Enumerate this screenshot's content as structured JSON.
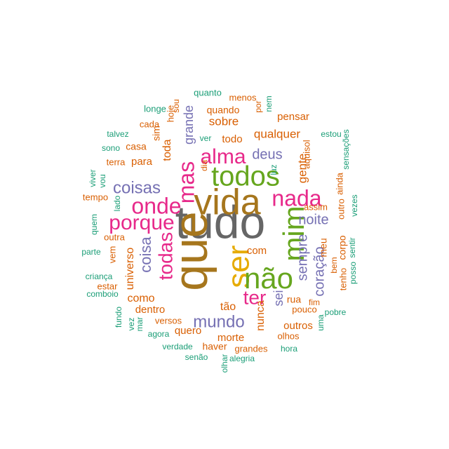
{
  "palette": {
    "teal": "#1b9e77",
    "orange": "#d95f02",
    "purple": "#7570b3",
    "magenta": "#e7298a",
    "green": "#66a61e",
    "gold": "#e6ab02",
    "brown": "#a6761d",
    "gray": "#666666"
  },
  "words": [
    {
      "text": "tudo",
      "color": "gray"
    },
    {
      "text": "que",
      "color": "brown"
    },
    {
      "text": "vida",
      "color": "brown"
    },
    {
      "text": "ser",
      "color": "gold"
    },
    {
      "text": "não",
      "color": "green"
    },
    {
      "text": "todos",
      "color": "green"
    },
    {
      "text": "mim",
      "color": "green"
    },
    {
      "text": "nada",
      "color": "magenta"
    },
    {
      "text": "alma",
      "color": "magenta"
    },
    {
      "text": "mas",
      "color": "magenta"
    },
    {
      "text": "onde",
      "color": "magenta"
    },
    {
      "text": "porque",
      "color": "magenta"
    },
    {
      "text": "coisas",
      "color": "purple"
    },
    {
      "text": "ter",
      "color": "magenta"
    },
    {
      "text": "todas",
      "color": "magenta"
    },
    {
      "text": "coisa",
      "color": "purple"
    },
    {
      "text": "mundo",
      "color": "purple"
    },
    {
      "text": "sempre",
      "color": "purple"
    },
    {
      "text": "noite",
      "color": "purple"
    },
    {
      "text": "deus",
      "color": "purple"
    },
    {
      "text": "coração",
      "color": "purple"
    },
    {
      "text": "quanto",
      "color": "teal"
    },
    {
      "text": "menos",
      "color": "orange"
    },
    {
      "text": "longe",
      "color": "teal"
    },
    {
      "text": "hoje",
      "color": "orange"
    },
    {
      "text": "sou",
      "color": "orange"
    },
    {
      "text": "quando",
      "color": "orange"
    },
    {
      "text": "por",
      "color": "orange"
    },
    {
      "text": "nem",
      "color": "teal"
    },
    {
      "text": "pensar",
      "color": "orange"
    },
    {
      "text": "cada",
      "color": "orange"
    },
    {
      "text": "sobre",
      "color": "orange"
    },
    {
      "text": "qualquer",
      "color": "orange"
    },
    {
      "text": "talvez",
      "color": "teal"
    },
    {
      "text": "sim",
      "color": "orange"
    },
    {
      "text": "grande",
      "color": "purple"
    },
    {
      "text": "ver",
      "color": "teal"
    },
    {
      "text": "todo",
      "color": "orange"
    },
    {
      "text": "estou",
      "color": "teal"
    },
    {
      "text": "casa",
      "color": "orange"
    },
    {
      "text": "sono",
      "color": "teal"
    },
    {
      "text": "toda",
      "color": "orange"
    },
    {
      "text": "aquisol",
      "color": "orange"
    },
    {
      "text": "sensações",
      "color": "teal"
    },
    {
      "text": "terra",
      "color": "orange"
    },
    {
      "text": "para",
      "color": "orange"
    },
    {
      "text": "dia",
      "color": "orange"
    },
    {
      "text": "luz",
      "color": "teal"
    },
    {
      "text": "gente",
      "color": "orange"
    },
    {
      "text": "ainda",
      "color": "orange"
    },
    {
      "text": "viver",
      "color": "teal"
    },
    {
      "text": "vou",
      "color": "teal"
    },
    {
      "text": "tempo",
      "color": "orange"
    },
    {
      "text": "lado",
      "color": "teal"
    },
    {
      "text": "vezes",
      "color": "teal"
    },
    {
      "text": "assim",
      "color": "orange"
    },
    {
      "text": "outro",
      "color": "orange"
    },
    {
      "text": "meu",
      "color": "orange"
    },
    {
      "text": "quem",
      "color": "teal"
    },
    {
      "text": "outra",
      "color": "orange"
    },
    {
      "text": "com",
      "color": "orange"
    },
    {
      "text": "parte",
      "color": "teal"
    },
    {
      "text": "vem",
      "color": "orange"
    },
    {
      "text": "universo",
      "color": "orange"
    },
    {
      "text": "bem",
      "color": "orange"
    },
    {
      "text": "corpo",
      "color": "orange"
    },
    {
      "text": "sentir",
      "color": "teal"
    },
    {
      "text": "posso",
      "color": "teal"
    },
    {
      "text": "tenho",
      "color": "orange"
    },
    {
      "text": "criança",
      "color": "teal"
    },
    {
      "text": "estar",
      "color": "orange"
    },
    {
      "text": "comboio",
      "color": "teal"
    },
    {
      "text": "como",
      "color": "orange"
    },
    {
      "text": "sei",
      "color": "purple"
    },
    {
      "text": "rua",
      "color": "orange"
    },
    {
      "text": "fim",
      "color": "orange"
    },
    {
      "text": "tão",
      "color": "orange"
    },
    {
      "text": "pouco",
      "color": "orange"
    },
    {
      "text": "dentro",
      "color": "orange"
    },
    {
      "text": "pobre",
      "color": "teal"
    },
    {
      "text": "fundo",
      "color": "teal"
    },
    {
      "text": "vez",
      "color": "teal"
    },
    {
      "text": "mar",
      "color": "teal"
    },
    {
      "text": "versos",
      "color": "orange"
    },
    {
      "text": "nunca",
      "color": "orange"
    },
    {
      "text": "outros",
      "color": "orange"
    },
    {
      "text": "uma",
      "color": "teal"
    },
    {
      "text": "quero",
      "color": "orange"
    },
    {
      "text": "morte",
      "color": "orange"
    },
    {
      "text": "olhos",
      "color": "orange"
    },
    {
      "text": "agora",
      "color": "teal"
    },
    {
      "text": "haver",
      "color": "orange"
    },
    {
      "text": "verdade",
      "color": "teal"
    },
    {
      "text": "grandes",
      "color": "orange"
    },
    {
      "text": "hora",
      "color": "teal"
    },
    {
      "text": "senão",
      "color": "teal"
    },
    {
      "text": "olhar",
      "color": "teal"
    },
    {
      "text": "alegria",
      "color": "teal"
    }
  ]
}
